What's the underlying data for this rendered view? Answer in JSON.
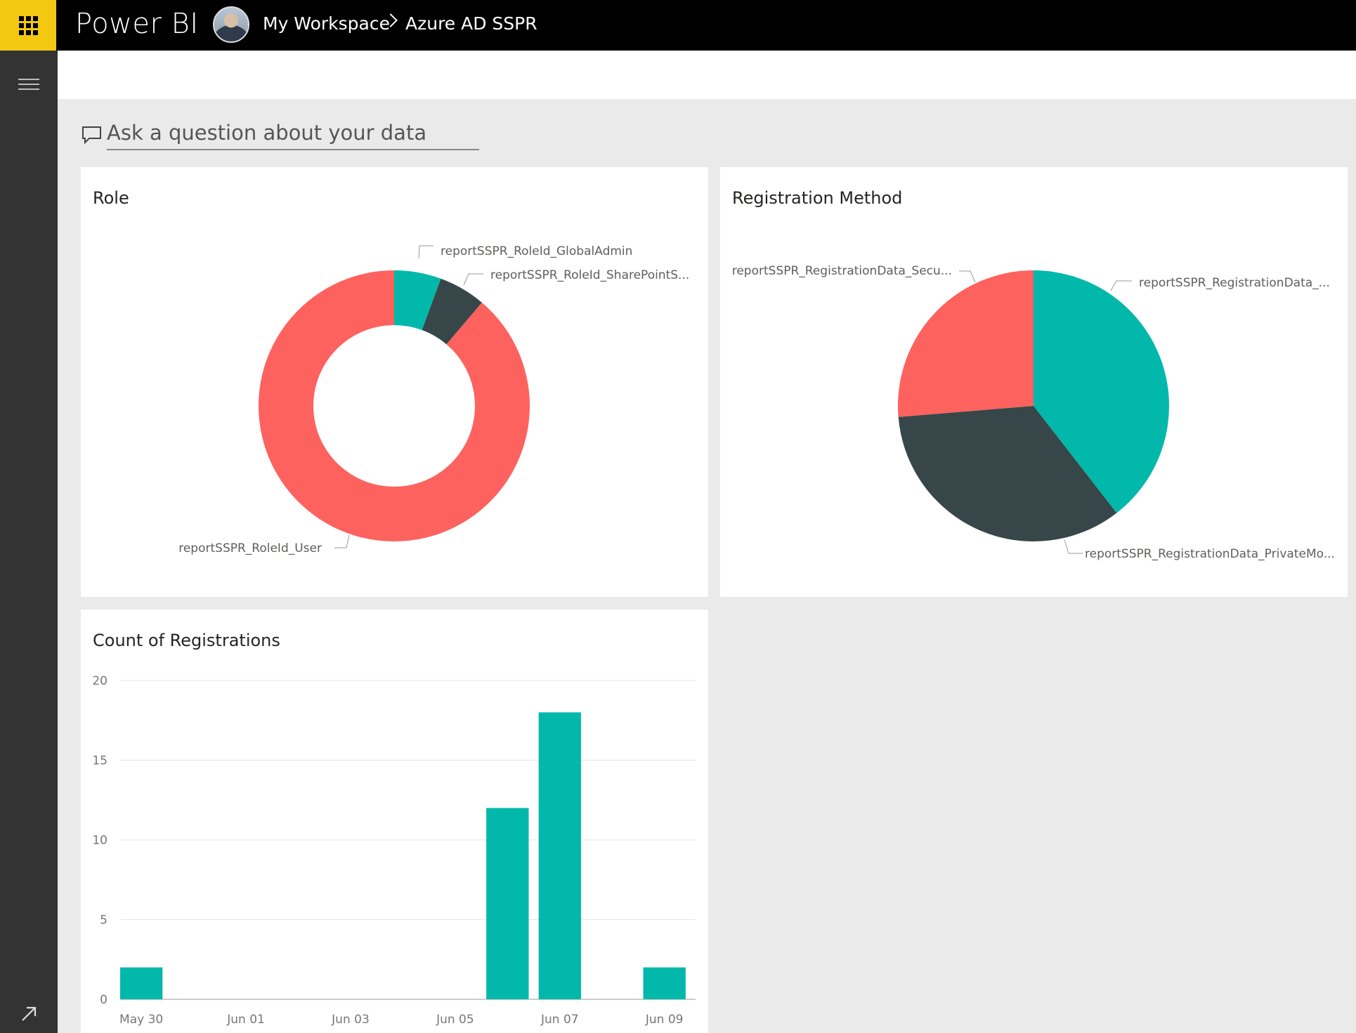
{
  "header": {
    "app_name": "Power BI",
    "breadcrumb": [
      "My Workspace",
      "Azure AD SSPR"
    ]
  },
  "qna": {
    "placeholder": "Ask a question about your data"
  },
  "tiles": {
    "role": {
      "title": "Role",
      "chart_data": {
        "type": "pie",
        "style": "donut",
        "slices": [
          {
            "label": "reportSSPR_RoleId_GlobalAdmin",
            "value": 5.6,
            "color": "#01b8aa"
          },
          {
            "label": "reportSSPR_RoleId_SharePointS...",
            "value": 5.6,
            "color": "#374649"
          },
          {
            "label": "reportSSPR_RoleId_User",
            "value": 88.8,
            "color": "#fd625e"
          }
        ]
      }
    },
    "registration_method": {
      "title": "Registration Method",
      "chart_data": {
        "type": "pie",
        "slices": [
          {
            "label": "reportSSPR_RegistrationData_...",
            "value": 39.5,
            "color": "#01b8aa"
          },
          {
            "label": "reportSSPR_RegistrationData_PrivateMo...",
            "value": 34.2,
            "color": "#374649"
          },
          {
            "label": "reportSSPR_RegistrationData_Secu...",
            "value": 26.3,
            "color": "#fd625e"
          }
        ]
      }
    },
    "count_registrations": {
      "title": "Count of Registrations",
      "chart_data": {
        "type": "bar",
        "color": "#01b8aa",
        "ylim": [
          0,
          20
        ],
        "yticks": [
          "0",
          "5",
          "10",
          "15",
          "20"
        ],
        "xtick_labels": [
          "May 30",
          "Jun 01",
          "Jun 03",
          "Jun 05",
          "Jun 07",
          "Jun 09"
        ],
        "categories": [
          "May 30",
          "May 31",
          "Jun 01",
          "Jun 02",
          "Jun 03",
          "Jun 04",
          "Jun 05",
          "Jun 06",
          "Jun 07",
          "Jun 08",
          "Jun 09"
        ],
        "values": [
          2,
          0,
          0,
          0,
          0,
          0,
          0,
          12,
          18,
          0,
          2
        ]
      }
    }
  }
}
